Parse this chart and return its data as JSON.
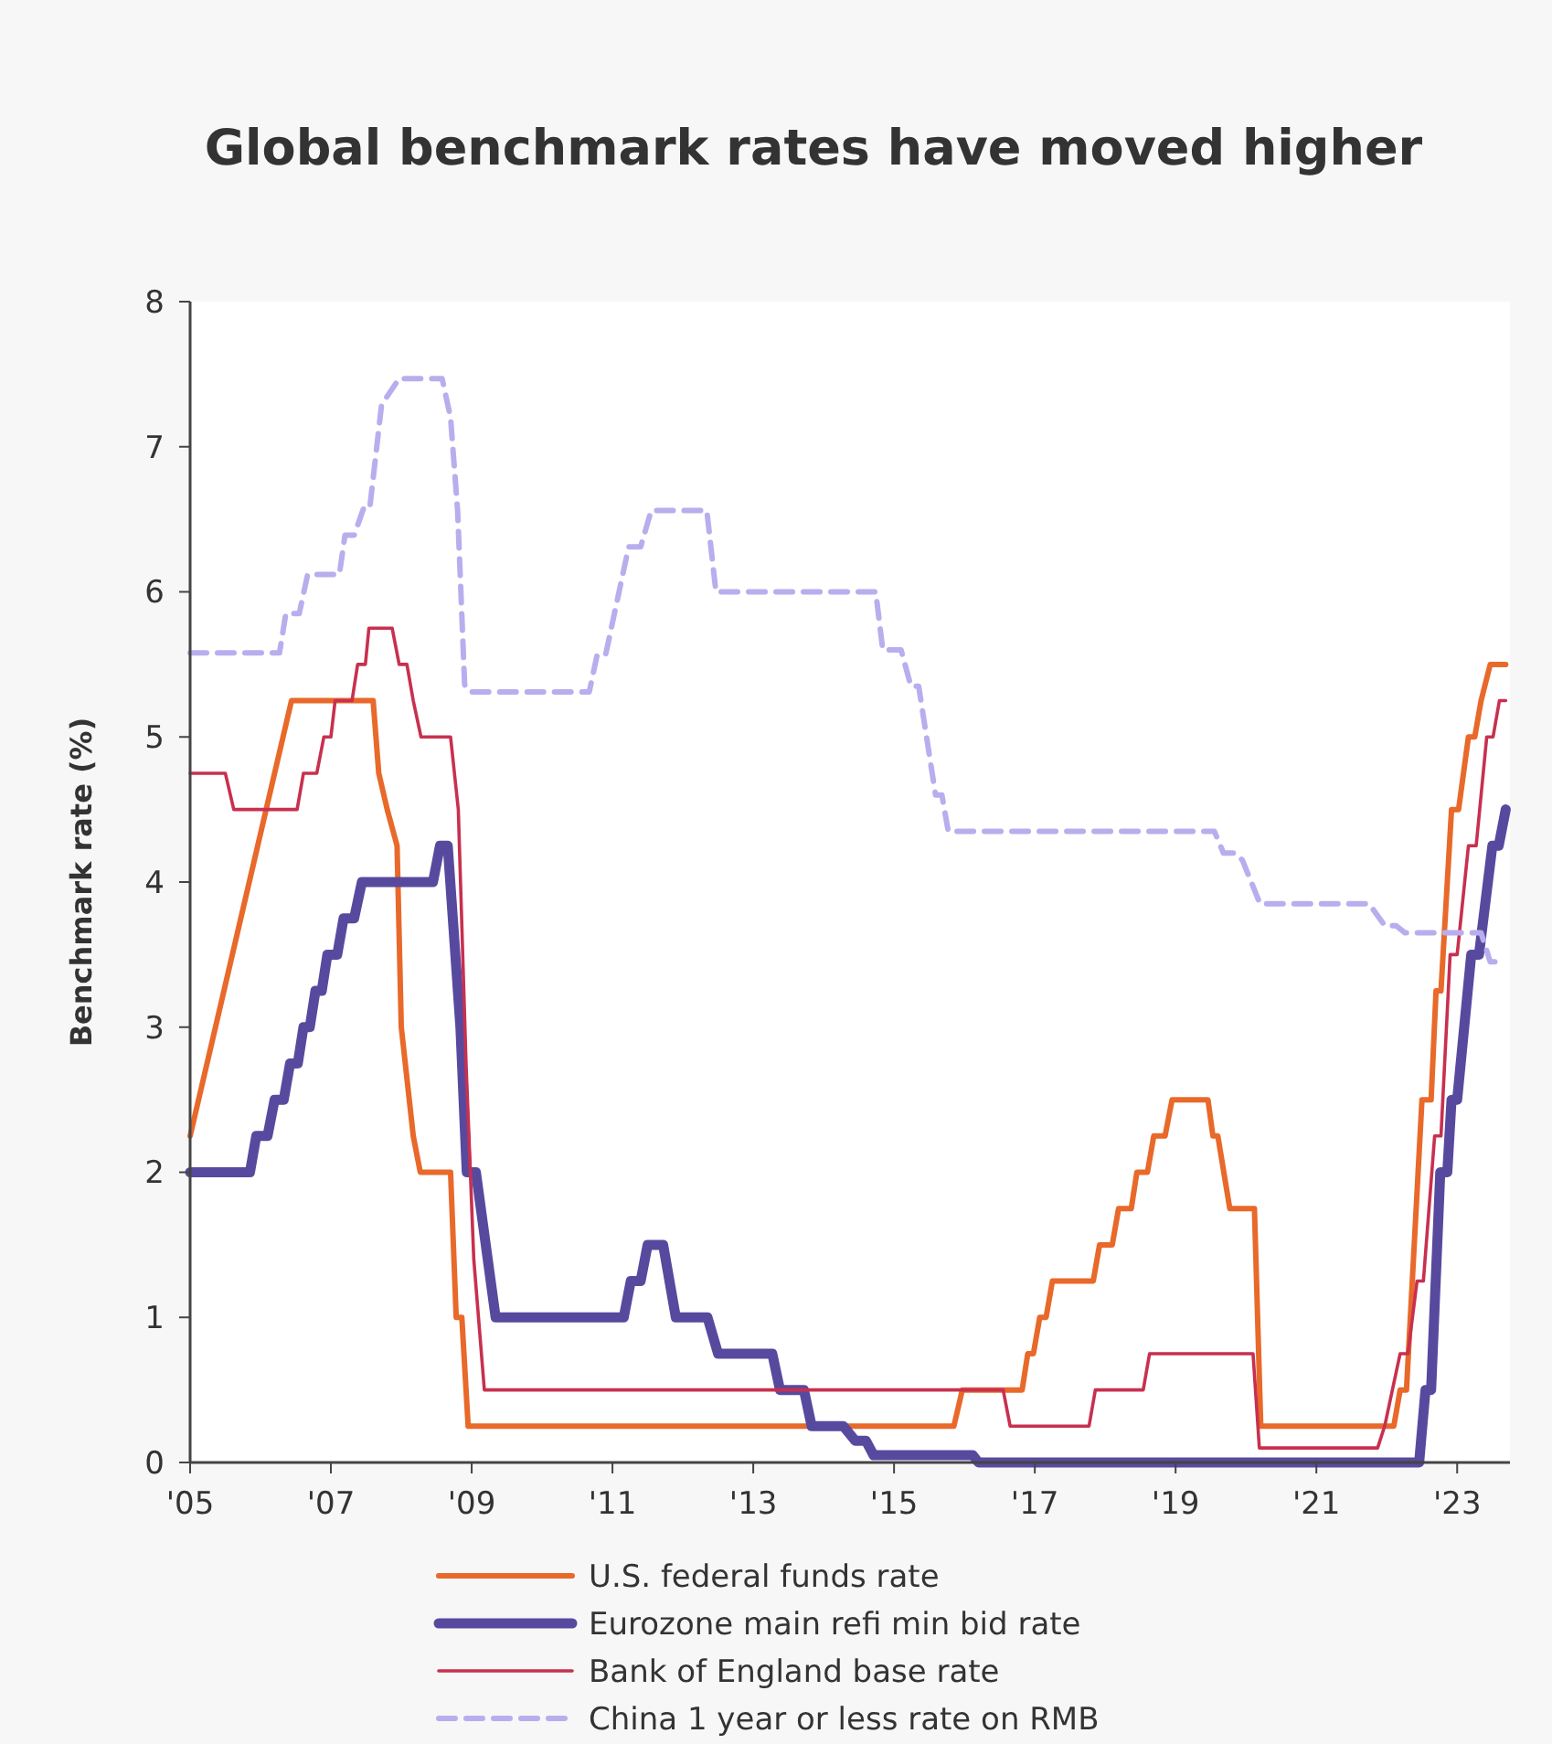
{
  "chart_data": {
    "type": "line",
    "title": "Global benchmark rates have moved higher",
    "ylabel": "Benchmark rate (%)",
    "xlim": [
      2005,
      2023.75
    ],
    "xticks": [
      {
        "value": 2005,
        "label": "'05"
      },
      {
        "value": 2007,
        "label": "'07"
      },
      {
        "value": 2009,
        "label": "'09"
      },
      {
        "value": 2011,
        "label": "'11"
      },
      {
        "value": 2013,
        "label": "'13"
      },
      {
        "value": 2015,
        "label": "'15"
      },
      {
        "value": 2017,
        "label": "'17"
      },
      {
        "value": 2019,
        "label": "'19"
      },
      {
        "value": 2021,
        "label": "'21"
      },
      {
        "value": 2023,
        "label": "'23"
      }
    ],
    "ylim": [
      0,
      8
    ],
    "yticks": [
      0,
      1,
      2,
      3,
      4,
      5,
      6,
      7,
      8
    ],
    "grid": false,
    "legend": "bottom",
    "marker": "none",
    "series": [
      {
        "name": "U.S. federal funds rate",
        "color": "#e8692a",
        "line_style": "solid",
        "x": [
          2005,
          2006.44,
          2007.6,
          2007.68,
          2007.8,
          2007.94,
          2008.0,
          2008.17,
          2008.27,
          2008.7,
          2008.78,
          2008.86,
          2008.95,
          2015.85,
          2015.97,
          2016.82,
          2016.9,
          2016.98,
          2017.07,
          2017.16,
          2017.25,
          2017.83,
          2017.92,
          2018.1,
          2018.19,
          2018.37,
          2018.45,
          2018.6,
          2018.69,
          2018.85,
          2018.95,
          2019.46,
          2019.53,
          2019.6,
          2019.77,
          2020.12,
          2020.21,
          2022.1,
          2022.19,
          2022.28,
          2022.5,
          2022.63,
          2022.7,
          2022.77,
          2022.92,
          2023.02,
          2023.16,
          2023.25,
          2023.34,
          2023.47,
          2023.69
        ],
        "values": [
          2.25,
          5.25,
          5.25,
          4.75,
          4.5,
          4.25,
          3.0,
          2.25,
          2.0,
          2.0,
          1.0,
          1.0,
          0.25,
          0.25,
          0.5,
          0.5,
          0.75,
          0.75,
          1.0,
          1.0,
          1.25,
          1.25,
          1.5,
          1.5,
          1.75,
          1.75,
          2.0,
          2.0,
          2.25,
          2.25,
          2.5,
          2.5,
          2.25,
          2.25,
          1.75,
          1.75,
          0.25,
          0.25,
          0.5,
          0.5,
          2.5,
          2.5,
          3.25,
          3.25,
          4.5,
          4.5,
          5.0,
          5.0,
          5.25,
          5.5,
          5.5
        ]
      },
      {
        "name": "Eurozone main refi min bid rate",
        "color": "#574a9e",
        "line_style": "solid",
        "x": [
          2005,
          2005.85,
          2005.94,
          2006.1,
          2006.2,
          2006.33,
          2006.42,
          2006.53,
          2006.61,
          2006.7,
          2006.78,
          2006.87,
          2006.95,
          2007.09,
          2007.18,
          2007.33,
          2007.44,
          2008.45,
          2008.55,
          2008.66,
          2008.84,
          2008.93,
          2009.06,
          2009.2,
          2009.34,
          2011.16,
          2011.26,
          2011.4,
          2011.5,
          2011.72,
          2011.9,
          2012.35,
          2012.5,
          2013.27,
          2013.38,
          2013.72,
          2013.83,
          2014.28,
          2014.45,
          2014.6,
          2014.71,
          2016.12,
          2016.2,
          2022.46,
          2022.55,
          2022.63,
          2022.76,
          2022.86,
          2022.92,
          2023.0,
          2023.2,
          2023.31,
          2023.5,
          2023.59,
          2023.69
        ],
        "values": [
          2.0,
          2.0,
          2.25,
          2.25,
          2.5,
          2.5,
          2.75,
          2.75,
          3.0,
          3.0,
          3.25,
          3.25,
          3.5,
          3.5,
          3.75,
          3.75,
          4.0,
          4.0,
          4.25,
          4.25,
          3.0,
          2.0,
          2.0,
          1.5,
          1.0,
          1.0,
          1.25,
          1.25,
          1.5,
          1.5,
          1.0,
          1.0,
          0.75,
          0.75,
          0.5,
          0.5,
          0.25,
          0.25,
          0.15,
          0.15,
          0.05,
          0.05,
          0,
          0,
          0.5,
          0.5,
          2.0,
          2.0,
          2.5,
          2.5,
          3.5,
          3.5,
          4.25,
          4.25,
          4.5
        ]
      },
      {
        "name": "Bank of England base rate",
        "color": "#c8304f",
        "line_style": "solid",
        "x": [
          2005,
          2005.5,
          2005.62,
          2006.52,
          2006.61,
          2006.8,
          2006.9,
          2007.0,
          2007.06,
          2007.3,
          2007.38,
          2007.49,
          2007.54,
          2007.87,
          2007.97,
          2008.08,
          2008.17,
          2008.28,
          2008.7,
          2008.81,
          2008.92,
          2009.03,
          2009.18,
          2016.55,
          2016.65,
          2017.77,
          2017.86,
          2018.54,
          2018.63,
          2020.1,
          2020.19,
          2021.87,
          2021.97,
          2022.19,
          2022.3,
          2022.43,
          2022.52,
          2022.68,
          2022.77,
          2022.9,
          2023.0,
          2023.16,
          2023.27,
          2023.42,
          2023.51,
          2023.6,
          2023.69
        ],
        "values": [
          4.75,
          4.75,
          4.5,
          4.5,
          4.75,
          4.75,
          5.0,
          5.0,
          5.25,
          5.25,
          5.5,
          5.5,
          5.75,
          5.75,
          5.5,
          5.5,
          5.25,
          5.0,
          5.0,
          4.5,
          2.75,
          1.4,
          0.5,
          0.5,
          0.25,
          0.25,
          0.5,
          0.5,
          0.75,
          0.75,
          0.1,
          0.1,
          0.25,
          0.75,
          0.75,
          1.25,
          1.25,
          2.25,
          2.25,
          3.5,
          3.5,
          4.25,
          4.25,
          5.0,
          5.0,
          5.25,
          5.25
        ]
      },
      {
        "name": "China 1 year or less rate on RMB",
        "color": "#b8aeee",
        "line_style": "dashed",
        "x": [
          2005,
          2006.27,
          2006.36,
          2006.55,
          2006.67,
          2007.12,
          2007.2,
          2007.33,
          2007.46,
          2007.55,
          2007.72,
          2007.97,
          2008.58,
          2008.7,
          2008.8,
          2008.9,
          2008.98,
          2010.67,
          2010.78,
          2010.9,
          2011.01,
          2011.23,
          2011.4,
          2011.55,
          2012.34,
          2012.47,
          2014.74,
          2014.84,
          2015.1,
          2015.24,
          2015.35,
          2015.59,
          2015.68,
          2015.77,
          2019.55,
          2019.68,
          2019.85,
          2019.95,
          2020.2,
          2021.75,
          2021.97,
          2022.13,
          2022.26,
          2023.34,
          2023.47,
          2023.69
        ],
        "values": [
          5.58,
          5.58,
          5.85,
          5.85,
          6.12,
          6.12,
          6.39,
          6.39,
          6.57,
          6.57,
          7.29,
          7.47,
          7.47,
          7.2,
          6.56,
          5.36,
          5.31,
          5.31,
          5.56,
          5.56,
          5.81,
          6.31,
          6.31,
          6.56,
          6.56,
          6.0,
          6.0,
          5.6,
          5.6,
          5.35,
          5.35,
          4.6,
          4.6,
          4.35,
          4.35,
          4.2,
          4.2,
          4.15,
          3.85,
          3.85,
          3.7,
          3.7,
          3.65,
          3.65,
          3.45,
          3.45
        ]
      }
    ]
  }
}
